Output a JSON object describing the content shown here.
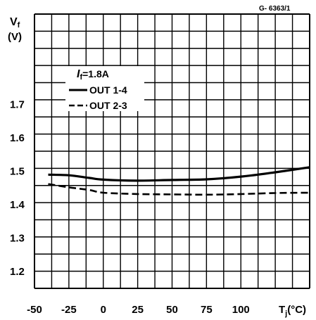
{
  "chart_data": {
    "type": "line",
    "figure_code": "G- 6363/1",
    "ylabel_symbol": "V",
    "ylabel_sub": "f",
    "ylabel_unit": "(V)",
    "xlabel_symbol": "T",
    "xlabel_sub": "j",
    "xlabel_unit": "(°C)",
    "condition_symbol": "I",
    "condition_sub": "f",
    "condition_value": "=1.8A",
    "xlim": [
      -50,
      150
    ],
    "ylim": [
      1.15,
      1.97
    ],
    "x_ticks": [
      {
        "value": -50,
        "label": "-50"
      },
      {
        "value": -25,
        "label": "-25"
      },
      {
        "value": 0,
        "label": "0"
      },
      {
        "value": 25,
        "label": "25"
      },
      {
        "value": 50,
        "label": "50"
      },
      {
        "value": 75,
        "label": "75"
      },
      {
        "value": 100,
        "label": "100"
      }
    ],
    "y_ticks": [
      {
        "value": 1.2,
        "label": "1.2"
      },
      {
        "value": 1.3,
        "label": "1.3"
      },
      {
        "value": 1.4,
        "label": "1.4"
      },
      {
        "value": 1.5,
        "label": "1.5"
      },
      {
        "value": 1.6,
        "label": "1.6"
      },
      {
        "value": 1.7,
        "label": "1.7"
      }
    ],
    "grid": true,
    "legend_placement": "top-left",
    "series": [
      {
        "name": "OUT 1-4",
        "style": "solid",
        "x": [
          -40,
          -25,
          -10,
          0,
          25,
          50,
          75,
          100,
          125,
          150
        ],
        "y": [
          1.49,
          1.488,
          1.48,
          1.475,
          1.472,
          1.474,
          1.476,
          1.484,
          1.497,
          1.512
        ]
      },
      {
        "name": "OUT 2-3",
        "style": "dashed",
        "x": [
          -40,
          -25,
          -10,
          0,
          25,
          50,
          75,
          100,
          125,
          150
        ],
        "y": [
          1.462,
          1.452,
          1.444,
          1.436,
          1.432,
          1.431,
          1.43,
          1.432,
          1.435,
          1.436
        ]
      }
    ]
  }
}
